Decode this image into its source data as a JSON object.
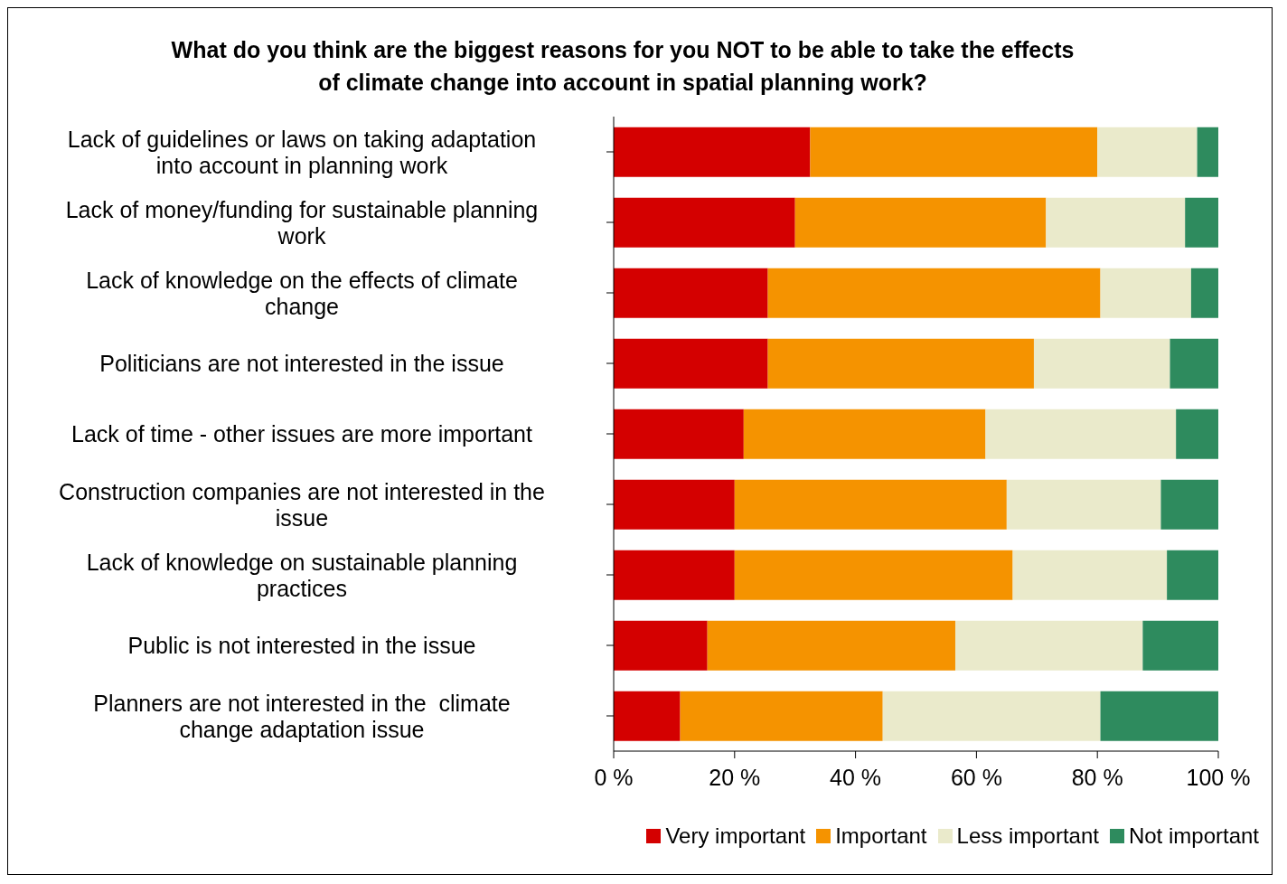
{
  "chart_data": {
    "type": "bar",
    "orientation": "horizontal",
    "stacked": true,
    "title": "What do you think are the biggest reasons for you NOT to be able to take the effects of climate change into account in spatial planning work?",
    "categories": [
      "Lack of guidelines or laws on taking adaptation into account in planning work",
      "Lack of money/funding for sustainable planning work",
      "Lack of knowledge on the effects of climate change",
      "Politicians are not interested in the issue",
      "Lack of time - other issues are more important",
      "Construction companies are not interested in the issue",
      "Lack of knowledge on sustainable planning practices",
      "Public is not interested in the issue",
      "Planners are not interested in the  climate change adaptation issue"
    ],
    "series": [
      {
        "name": "Very important",
        "color": "#d40000",
        "values": [
          32.5,
          30,
          25.5,
          25.5,
          21.5,
          20,
          20,
          15.5,
          11
        ]
      },
      {
        "name": "Important",
        "color": "#f59300",
        "values": [
          47.5,
          41.5,
          55,
          44,
          40,
          45,
          46,
          41,
          33.5
        ]
      },
      {
        "name": "Less important",
        "color": "#eaeacb",
        "values": [
          16.5,
          23,
          15,
          22.5,
          31.5,
          25.5,
          25.5,
          31,
          36
        ]
      },
      {
        "name": "Not important",
        "color": "#2e8b5e",
        "values": [
          3.5,
          5.5,
          4.5,
          8,
          7,
          9.5,
          8.5,
          12.5,
          19.5
        ]
      }
    ],
    "xlim": [
      0,
      100
    ],
    "xticks": [
      {
        "value": 0,
        "label": "0 %"
      },
      {
        "value": 20,
        "label": "20 %"
      },
      {
        "value": 40,
        "label": "40 %"
      },
      {
        "value": 60,
        "label": "60 %"
      },
      {
        "value": 80,
        "label": "80 %"
      },
      {
        "value": 100,
        "label": "100 %"
      }
    ],
    "grid": false,
    "legend": "bottom right"
  }
}
